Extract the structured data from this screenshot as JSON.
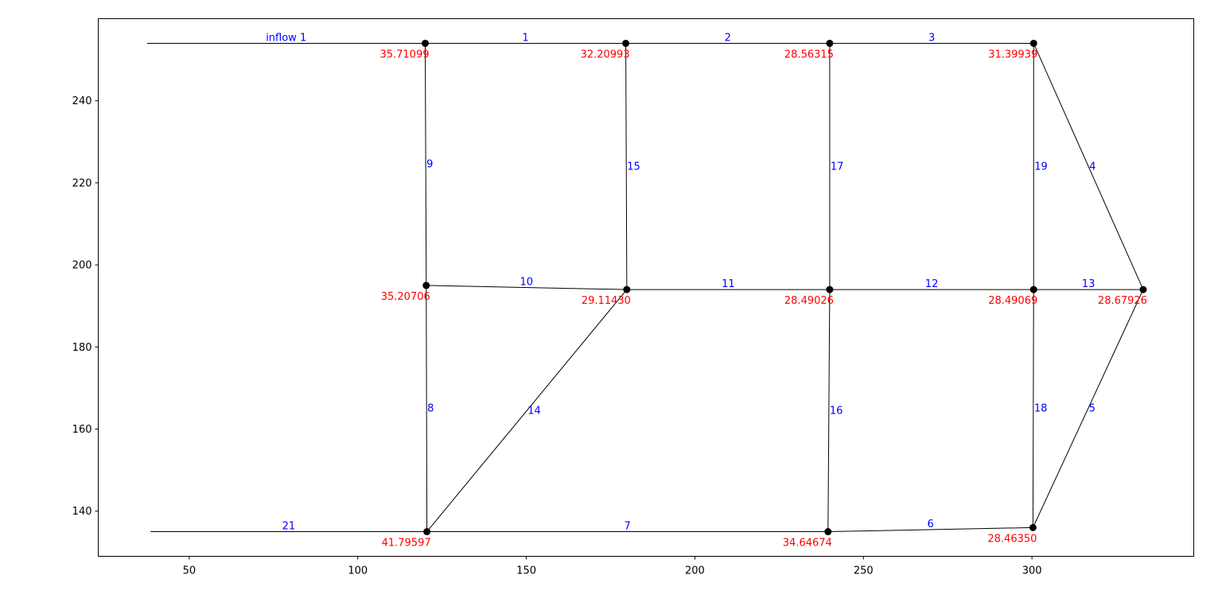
{
  "chart_data": {
    "type": "network",
    "xlim": [
      23,
      348
    ],
    "ylim": [
      129,
      260
    ],
    "xticks": [
      50,
      100,
      150,
      200,
      250,
      300
    ],
    "yticks": [
      140,
      160,
      180,
      200,
      220,
      240
    ],
    "grid": false,
    "nodes": [
      {
        "id": "n1",
        "x": 120,
        "y": 254,
        "value": "35.71099"
      },
      {
        "id": "n2",
        "x": 179.5,
        "y": 254,
        "value": "32.20993"
      },
      {
        "id": "n3",
        "x": 240,
        "y": 254,
        "value": "28.56315"
      },
      {
        "id": "n4",
        "x": 300.5,
        "y": 254,
        "value": "31.39939"
      },
      {
        "id": "n5",
        "x": 120.3,
        "y": 195,
        "value": "35.20706"
      },
      {
        "id": "n6",
        "x": 179.8,
        "y": 194,
        "value": "29.11430"
      },
      {
        "id": "n7",
        "x": 240,
        "y": 194,
        "value": "28.49026"
      },
      {
        "id": "n8",
        "x": 300.5,
        "y": 194,
        "value": "28.49069"
      },
      {
        "id": "n9",
        "x": 333,
        "y": 194,
        "value": "28.67926"
      },
      {
        "id": "n10",
        "x": 120.5,
        "y": 135,
        "value": "41.79597"
      },
      {
        "id": "n11",
        "x": 239.5,
        "y": 135,
        "value": "34.64674"
      },
      {
        "id": "n12",
        "x": 300.3,
        "y": 136,
        "value": "28.46350"
      }
    ],
    "inflow_edges": [
      {
        "label": "inflow 1",
        "from": [
          37.5,
          254
        ],
        "to": "n1"
      },
      {
        "label": "21",
        "from": [
          38.5,
          135
        ],
        "to": "n10"
      }
    ],
    "edges": [
      {
        "label": "1",
        "from": "n1",
        "to": "n2"
      },
      {
        "label": "2",
        "from": "n2",
        "to": "n3"
      },
      {
        "label": "3",
        "from": "n3",
        "to": "n4"
      },
      {
        "label": "4",
        "from": "n4",
        "to": "n9"
      },
      {
        "label": "5",
        "from": "n12",
        "to": "n9"
      },
      {
        "label": "6",
        "from": "n11",
        "to": "n12"
      },
      {
        "label": "7",
        "from": "n10",
        "to": "n11"
      },
      {
        "label": "8",
        "from": "n10",
        "to": "n5"
      },
      {
        "label": "9",
        "from": "n5",
        "to": "n1"
      },
      {
        "label": "10",
        "from": "n5",
        "to": "n6"
      },
      {
        "label": "11",
        "from": "n6",
        "to": "n7"
      },
      {
        "label": "12",
        "from": "n7",
        "to": "n8"
      },
      {
        "label": "13",
        "from": "n8",
        "to": "n9"
      },
      {
        "label": "14",
        "from": "n10",
        "to": "n6"
      },
      {
        "label": "15",
        "from": "n6",
        "to": "n2"
      },
      {
        "label": "16",
        "from": "n11",
        "to": "n7"
      },
      {
        "label": "17",
        "from": "n7",
        "to": "n3"
      },
      {
        "label": "18",
        "from": "n12",
        "to": "n8"
      },
      {
        "label": "19",
        "from": "n8",
        "to": "n4"
      }
    ]
  }
}
